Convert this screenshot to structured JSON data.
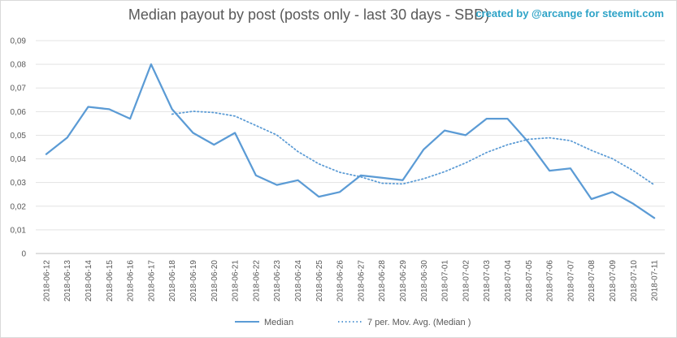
{
  "credit": "created by @arcange for steemit.com",
  "chart_data": {
    "type": "line",
    "title": "Median payout by post (posts only - last 30 days - SBD)",
    "ylim": [
      0,
      0.09
    ],
    "ytick_labels": [
      "0",
      "0,01",
      "0,02",
      "0,03",
      "0,04",
      "0,05",
      "0,06",
      "0,07",
      "0,08",
      "0,09"
    ],
    "categories": [
      "2018-06-12",
      "2018-06-13",
      "2018-06-14",
      "2018-06-15",
      "2018-06-16",
      "2018-06-17",
      "2018-06-18",
      "2018-06-19",
      "2018-06-20",
      "2018-06-21",
      "2018-06-22",
      "2018-06-23",
      "2018-06-24",
      "2018-06-25",
      "2018-06-26",
      "2018-06-27",
      "2018-06-28",
      "2018-06-29",
      "2018-06-30",
      "2018-07-01",
      "2018-07-02",
      "2018-07-03",
      "2018-07-04",
      "2018-07-05",
      "2018-07-06",
      "2018-07-07",
      "2018-07-08",
      "2018-07-09",
      "2018-07-10",
      "2018-07-11"
    ],
    "grid": true,
    "legend": "bottom",
    "series": [
      {
        "name": "Median",
        "style": "solid",
        "color": "#5b9bd5",
        "values": [
          0.042,
          0.049,
          0.062,
          0.061,
          0.057,
          0.08,
          0.061,
          0.051,
          0.046,
          0.051,
          0.033,
          0.029,
          0.031,
          0.024,
          0.026,
          0.033,
          0.032,
          0.031,
          0.044,
          0.052,
          0.05,
          0.057,
          0.057,
          0.047,
          0.035,
          0.036,
          0.023,
          0.026,
          0.021,
          0.015
        ]
      },
      {
        "name": "7 per. Mov. Avg. (Median )",
        "style": "dotted",
        "color": "#5b9bd5",
        "values": [
          null,
          null,
          null,
          null,
          null,
          null,
          0.0589,
          0.0601,
          0.0596,
          0.0581,
          0.0541,
          0.0501,
          0.0431,
          0.0379,
          0.0343,
          0.0324,
          0.0297,
          0.0294,
          0.0316,
          0.0346,
          0.0383,
          0.0427,
          0.046,
          0.0483,
          0.0489,
          0.0477,
          0.0436,
          0.0401,
          0.035,
          0.029
        ]
      }
    ]
  }
}
